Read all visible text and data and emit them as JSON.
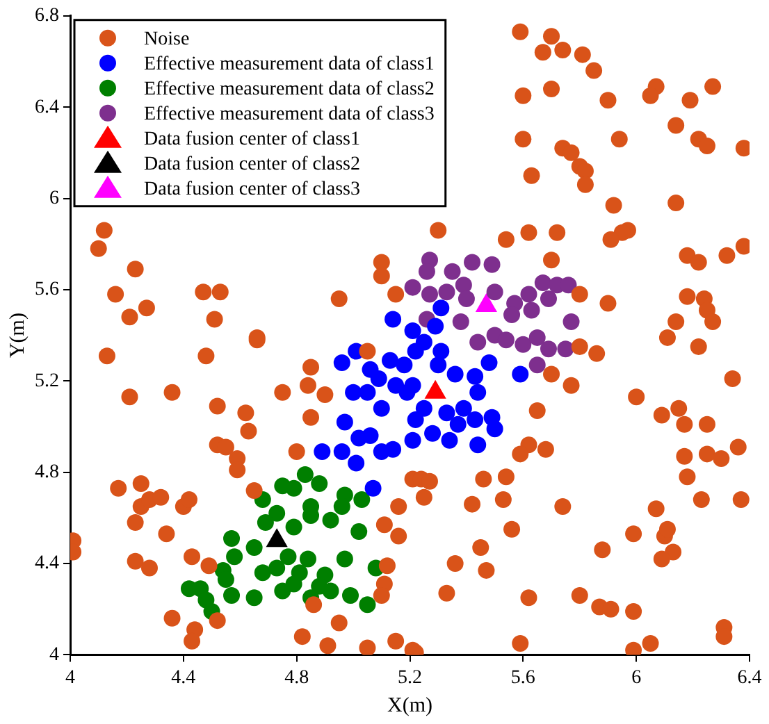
{
  "chart_data": {
    "type": "scatter",
    "xlabel": "X(m)",
    "ylabel": "Y(m)",
    "xlim": [
      4,
      6.4
    ],
    "ylim": [
      4,
      6.8
    ],
    "xticks": [
      4,
      4.4,
      4.8,
      5.2,
      5.6,
      6,
      6.4
    ],
    "yticks": [
      4,
      4.4,
      4.8,
      5.2,
      5.6,
      6,
      6.4,
      6.8
    ],
    "grid": false,
    "legend": "top left",
    "series": [
      {
        "name": "Noise",
        "color": "#d95319",
        "marker": "circle",
        "x": [
          5.59,
          5.7,
          5.67,
          5.74,
          5.81,
          5.85,
          6.07,
          6.05,
          6.27,
          6.19,
          5.9,
          5.7,
          5.6,
          6.14,
          5.94,
          6.22,
          6.25,
          6.38,
          5.6,
          5.74,
          5.77,
          5.8,
          5.82,
          5.82,
          5.63,
          5.92,
          6.14,
          5.97,
          5.95,
          5.91,
          5.72,
          5.62,
          5.54,
          5.7,
          6.18,
          6.22,
          6.32,
          6.38,
          5.3,
          6.18,
          6.24,
          6.25,
          6.27,
          6.14,
          5.9,
          5.8,
          4.12,
          4.1,
          4.23,
          4.16,
          4.21,
          4.27,
          4.47,
          4.53,
          4.51,
          4.66,
          4.95,
          5.1,
          5.1,
          5.15,
          4.13,
          4.48,
          4.66,
          4.21,
          4.36,
          4.52,
          4.62,
          4.63,
          4.52,
          4.55,
          4.59,
          4.59,
          4.75,
          4.85,
          4.84,
          4.9,
          4.85,
          4.8,
          5.05,
          4.65,
          4.17,
          4.25,
          4.25,
          4.28,
          4.32,
          4.4,
          4.42,
          4.23,
          4.34,
          4.01,
          4.01,
          4.23,
          4.28,
          4.43,
          4.49,
          4.36,
          4.44,
          4.43,
          4.52,
          4.82,
          4.86,
          4.91,
          4.95,
          5.05,
          5.15,
          5.16,
          5.11,
          5.16,
          5.12,
          5.11,
          5.1,
          5.21,
          5.21,
          5.8,
          5.86,
          5.7,
          5.77,
          5.65,
          5.62,
          5.59,
          5.68,
          5.24,
          5.27,
          5.25,
          5.46,
          5.54,
          5.42,
          5.53,
          5.74,
          5.56,
          5.45,
          5.36,
          5.47,
          5.33,
          5.62,
          5.8,
          5.87,
          5.91,
          5.99,
          5.59,
          5.22,
          5.99,
          6.05,
          6.31,
          6.31,
          6.07,
          5.99,
          6.1,
          6.11,
          6.13,
          6.09,
          5.88,
          6.0,
          6.09,
          6.15,
          6.17,
          6.25,
          6.17,
          6.25,
          6.3,
          6.36,
          6.18,
          6.23,
          6.37,
          6.34,
          6.11,
          6.22
        ],
        "values": [
          6.73,
          6.71,
          6.64,
          6.65,
          6.63,
          6.56,
          6.49,
          6.45,
          6.49,
          6.43,
          6.43,
          6.48,
          6.45,
          6.32,
          6.26,
          6.26,
          6.23,
          6.22,
          6.26,
          6.22,
          6.2,
          6.14,
          6.12,
          6.06,
          6.1,
          5.97,
          5.98,
          5.86,
          5.85,
          5.82,
          5.85,
          5.85,
          5.82,
          5.73,
          5.75,
          5.72,
          5.75,
          5.79,
          5.86,
          5.57,
          5.56,
          5.51,
          5.46,
          5.46,
          5.54,
          5.58,
          5.86,
          5.78,
          5.69,
          5.58,
          5.48,
          5.52,
          5.59,
          5.59,
          5.47,
          5.39,
          5.56,
          5.72,
          5.66,
          5.58,
          5.31,
          5.31,
          5.38,
          5.13,
          5.15,
          5.09,
          5.06,
          4.98,
          4.92,
          4.91,
          4.86,
          4.81,
          5.15,
          5.26,
          5.18,
          5.14,
          5.04,
          4.89,
          5.33,
          4.72,
          4.73,
          4.75,
          4.65,
          4.68,
          4.69,
          4.65,
          4.68,
          4.58,
          4.53,
          4.5,
          4.45,
          4.41,
          4.38,
          4.43,
          4.39,
          4.16,
          4.11,
          4.06,
          4.15,
          4.08,
          4.22,
          4.04,
          4.14,
          4.03,
          4.06,
          4.65,
          4.57,
          4.52,
          4.39,
          4.31,
          4.26,
          4.77,
          4.02,
          5.35,
          5.32,
          5.23,
          5.18,
          5.07,
          4.92,
          4.88,
          4.9,
          4.77,
          4.76,
          4.69,
          4.77,
          4.78,
          4.66,
          4.68,
          4.65,
          4.55,
          4.47,
          4.4,
          4.37,
          4.27,
          4.25,
          4.26,
          4.21,
          4.2,
          4.19,
          4.05,
          4.01,
          4.02,
          4.05,
          4.12,
          4.08,
          4.64,
          4.53,
          4.52,
          4.55,
          4.45,
          4.42,
          4.46,
          5.13,
          5.05,
          5.08,
          5.01,
          5.01,
          4.87,
          4.88,
          4.86,
          4.91,
          4.78,
          4.68,
          4.68,
          5.21,
          5.39,
          5.35
        ]
      },
      {
        "name": "Effective measurement data of class1",
        "color": "#0000ff",
        "marker": "circle",
        "x": [
          5.0,
          5.05,
          5.09,
          5.13,
          5.18,
          5.1,
          4.97,
          5.02,
          5.06,
          4.89,
          4.96,
          5.01,
          5.1,
          5.14,
          5.07,
          5.19,
          5.15,
          5.25,
          5.31,
          5.3,
          5.36,
          5.43,
          5.48,
          5.59,
          5.44,
          5.21,
          5.22,
          5.28,
          5.34,
          5.37,
          5.43,
          5.49,
          5.5,
          5.44,
          5.21,
          5.39,
          5.33,
          5.25,
          5.14,
          5.21,
          5.29,
          5.22,
          5.31,
          5.01,
          4.96,
          5.06
        ],
        "values": [
          5.15,
          5.15,
          5.21,
          5.29,
          5.27,
          5.08,
          5.02,
          4.95,
          4.96,
          4.89,
          4.89,
          4.84,
          4.89,
          4.9,
          4.73,
          5.15,
          5.18,
          5.37,
          5.33,
          5.27,
          5.23,
          5.22,
          5.28,
          5.23,
          5.15,
          5.18,
          5.03,
          4.97,
          4.94,
          5.01,
          5.03,
          5.04,
          4.99,
          4.92,
          4.94,
          5.08,
          5.06,
          5.08,
          5.47,
          5.42,
          5.44,
          5.33,
          5.52,
          5.33,
          5.28,
          5.25
        ]
      },
      {
        "name": "Effective measurement data of class2",
        "color": "#007f00",
        "marker": "circle",
        "x": [
          4.83,
          4.88,
          4.75,
          4.79,
          4.68,
          4.97,
          5.03,
          4.96,
          4.85,
          4.85,
          4.73,
          4.69,
          4.79,
          4.92,
          5.02,
          4.57,
          4.65,
          4.58,
          4.77,
          4.84,
          4.97,
          5.08,
          4.54,
          4.68,
          4.73,
          4.81,
          4.9,
          4.55,
          4.42,
          4.46,
          4.57,
          4.65,
          4.75,
          4.79,
          4.88,
          4.92,
          4.85,
          4.99,
          5.05,
          4.48,
          4.5
        ],
        "values": [
          4.79,
          4.75,
          4.74,
          4.73,
          4.68,
          4.7,
          4.68,
          4.65,
          4.65,
          4.61,
          4.62,
          4.58,
          4.56,
          4.59,
          4.54,
          4.51,
          4.47,
          4.43,
          4.43,
          4.42,
          4.42,
          4.38,
          4.37,
          4.36,
          4.38,
          4.36,
          4.35,
          4.33,
          4.29,
          4.29,
          4.26,
          4.25,
          4.28,
          4.31,
          4.3,
          4.28,
          4.25,
          4.26,
          4.22,
          4.24,
          4.19
        ]
      },
      {
        "name": "Effective measurement data of class3",
        "color": "#7e2f8e",
        "marker": "circle",
        "x": [
          5.27,
          5.26,
          5.35,
          5.42,
          5.49,
          5.21,
          5.27,
          5.33,
          5.39,
          5.4,
          5.5,
          5.57,
          5.62,
          5.67,
          5.72,
          5.76,
          5.69,
          5.63,
          5.56,
          5.26,
          5.38,
          5.77,
          5.44,
          5.5,
          5.54,
          5.6,
          5.65,
          5.69,
          5.75,
          5.65
        ],
        "values": [
          5.73,
          5.68,
          5.68,
          5.72,
          5.71,
          5.61,
          5.58,
          5.59,
          5.62,
          5.56,
          5.59,
          5.54,
          5.58,
          5.63,
          5.62,
          5.62,
          5.56,
          5.51,
          5.49,
          5.47,
          5.46,
          5.46,
          5.37,
          5.4,
          5.38,
          5.36,
          5.39,
          5.34,
          5.34,
          5.27
        ]
      },
      {
        "name": "Data fusion center of class1",
        "color": "#ff0000",
        "marker": "triangle",
        "x": [
          5.29
        ],
        "values": [
          5.15
        ]
      },
      {
        "name": "Data fusion center of class2",
        "color": "#000000",
        "marker": "triangle",
        "x": [
          4.73
        ],
        "values": [
          4.5
        ]
      },
      {
        "name": "Data fusion center of class3",
        "color": "#ff00ff",
        "marker": "triangle",
        "x": [
          5.47
        ],
        "values": [
          5.53
        ]
      }
    ]
  }
}
